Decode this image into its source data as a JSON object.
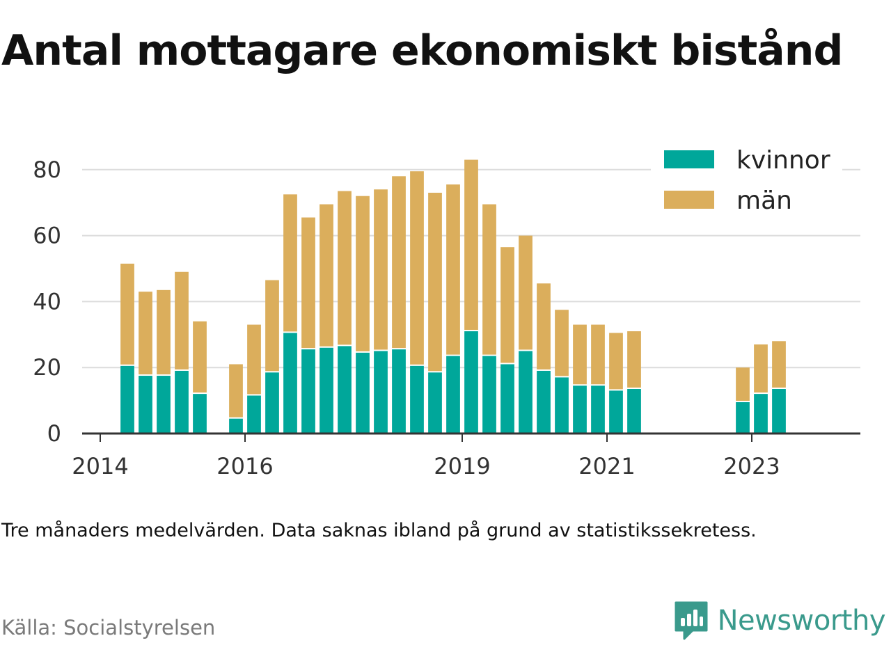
{
  "title": "Antal mottagare ekonomiskt bistånd",
  "note": "Tre månaders medelvärden. Data saknas ibland på grund av statistikssekretess.",
  "source": "Källa: Socialstyrelsen",
  "brand": {
    "name": "Newsworthy",
    "icon": "newsworthy-bar-chart-icon",
    "color": "#3a9a8c"
  },
  "chart_data": {
    "type": "bar",
    "stacked": true,
    "x_unit": "year",
    "xticks": [
      2014,
      2016,
      2019,
      2021,
      2023
    ],
    "xlim": [
      2013.75,
      2024.5
    ],
    "yticks": [
      0,
      20,
      40,
      60,
      80
    ],
    "ylim": [
      0,
      90
    ],
    "grid": true,
    "legend_position": "top-right",
    "bar_width_years": 0.19,
    "categories": [
      2014.375,
      2014.625,
      2014.875,
      2015.125,
      2015.375,
      2015.875,
      2016.125,
      2016.375,
      2016.625,
      2016.875,
      2017.125,
      2017.375,
      2017.625,
      2017.875,
      2018.125,
      2018.375,
      2018.625,
      2018.875,
      2019.125,
      2019.375,
      2019.625,
      2019.875,
      2020.125,
      2020.375,
      2020.625,
      2020.875,
      2021.125,
      2021.375,
      2022.875,
      2023.125,
      2023.375
    ],
    "series": [
      {
        "name": "kvinnor",
        "color": "#00a79a",
        "values": [
          20.5,
          17.5,
          17.5,
          19,
          12,
          4.5,
          11.5,
          18.5,
          30.5,
          25.5,
          26,
          26.5,
          24.5,
          25,
          25.5,
          20.5,
          18.5,
          23.5,
          31,
          23.5,
          21,
          25,
          19,
          17,
          14.5,
          14.5,
          13,
          13.5,
          9.5,
          12,
          13.5
        ]
      },
      {
        "name": "män",
        "color": "#dbae5c",
        "values": [
          31,
          25.5,
          26,
          30,
          22,
          16.5,
          21.5,
          28,
          42,
          40,
          43.5,
          47,
          47.5,
          49,
          52.5,
          59,
          54.5,
          52,
          52,
          46,
          35.5,
          35,
          26.5,
          20.5,
          18.5,
          18.5,
          17.5,
          17.5,
          10.5,
          15,
          14.5
        ]
      }
    ]
  }
}
